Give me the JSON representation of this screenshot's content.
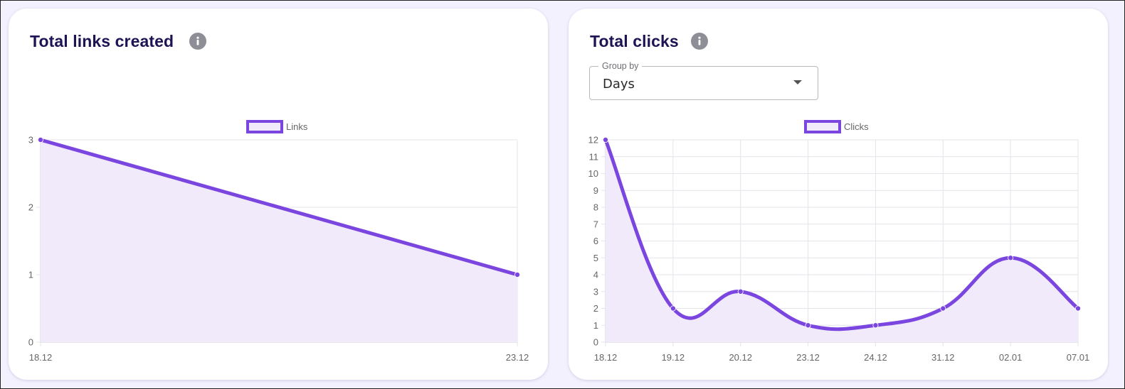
{
  "colors": {
    "accent": "#7b46e0",
    "fill": "#f1eafb",
    "grid": "#e4e4ea",
    "title": "#1d1454",
    "background": "#f4f1fe"
  },
  "cards": {
    "links": {
      "title": "Total links created",
      "info_icon": "info-icon"
    },
    "clicks": {
      "title": "Total clicks",
      "info_icon": "info-icon",
      "group_by": {
        "label": "Group by",
        "value": "Days",
        "icon": "caret-down-icon"
      }
    }
  },
  "chart_data": [
    {
      "type": "area",
      "legend": [
        "Links"
      ],
      "legend_position": "top",
      "grid": true,
      "curve": "straight",
      "ylim": [
        0,
        3
      ],
      "yticks": [
        0,
        1,
        2,
        3
      ],
      "categories": [
        "18.12",
        "23.12"
      ],
      "series": [
        {
          "name": "Links",
          "values": [
            3,
            1
          ]
        }
      ]
    },
    {
      "type": "area",
      "legend": [
        "Clicks"
      ],
      "legend_position": "top",
      "grid": true,
      "curve": "smooth",
      "ylim": [
        0,
        12
      ],
      "yticks": [
        0,
        1,
        2,
        3,
        4,
        5,
        6,
        7,
        8,
        9,
        10,
        11,
        12
      ],
      "categories": [
        "18.12",
        "19.12",
        "20.12",
        "23.12",
        "24.12",
        "31.12",
        "02.01",
        "07.01"
      ],
      "series": [
        {
          "name": "Clicks",
          "values": [
            12,
            2,
            3,
            1,
            1,
            2,
            5,
            2
          ]
        }
      ]
    }
  ]
}
